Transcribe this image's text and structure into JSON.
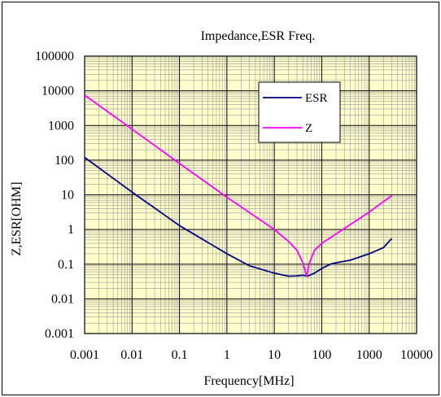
{
  "chart_data": {
    "type": "line",
    "title": "Impedance,ESR Freq.",
    "xlabel": "Frequency[MHz]",
    "ylabel": "Z,ESR[OHM]",
    "x_scale": "log",
    "y_scale": "log",
    "xlim": [
      0.001,
      10000
    ],
    "ylim": [
      0.001,
      100000
    ],
    "x_ticks": [
      "0.001",
      "0.01",
      "0.1",
      "1",
      "10",
      "100",
      "1000",
      "10000"
    ],
    "y_ticks": [
      "0.001",
      "0.01",
      "0.1",
      "1",
      "10",
      "100",
      "1000",
      "10000",
      "100000"
    ],
    "grid": true,
    "legend_position": "top-right",
    "plot_background": "#ffffcc",
    "series": [
      {
        "name": "ESR",
        "color": "#000080",
        "points": [
          [
            0.001,
            120
          ],
          [
            0.01,
            12
          ],
          [
            0.1,
            1.3
          ],
          [
            1,
            0.2
          ],
          [
            3,
            0.09
          ],
          [
            10,
            0.055
          ],
          [
            20,
            0.045
          ],
          [
            30,
            0.046
          ],
          [
            40,
            0.048
          ],
          [
            50,
            0.045
          ],
          [
            70,
            0.055
          ],
          [
            100,
            0.075
          ],
          [
            150,
            0.1
          ],
          [
            200,
            0.11
          ],
          [
            400,
            0.13
          ],
          [
            1000,
            0.2
          ],
          [
            2000,
            0.3
          ],
          [
            3000,
            0.55
          ]
        ]
      },
      {
        "name": "Z",
        "color": "#ff00ff",
        "points": [
          [
            0.001,
            7500
          ],
          [
            0.01,
            780
          ],
          [
            0.1,
            80
          ],
          [
            1,
            8.5
          ],
          [
            10,
            1
          ],
          [
            20,
            0.45
          ],
          [
            30,
            0.25
          ],
          [
            40,
            0.11
          ],
          [
            48,
            0.045
          ],
          [
            55,
            0.11
          ],
          [
            70,
            0.25
          ],
          [
            100,
            0.4
          ],
          [
            200,
            0.75
          ],
          [
            500,
            1.7
          ],
          [
            1000,
            3.2
          ],
          [
            3000,
            9.5
          ]
        ]
      }
    ]
  }
}
